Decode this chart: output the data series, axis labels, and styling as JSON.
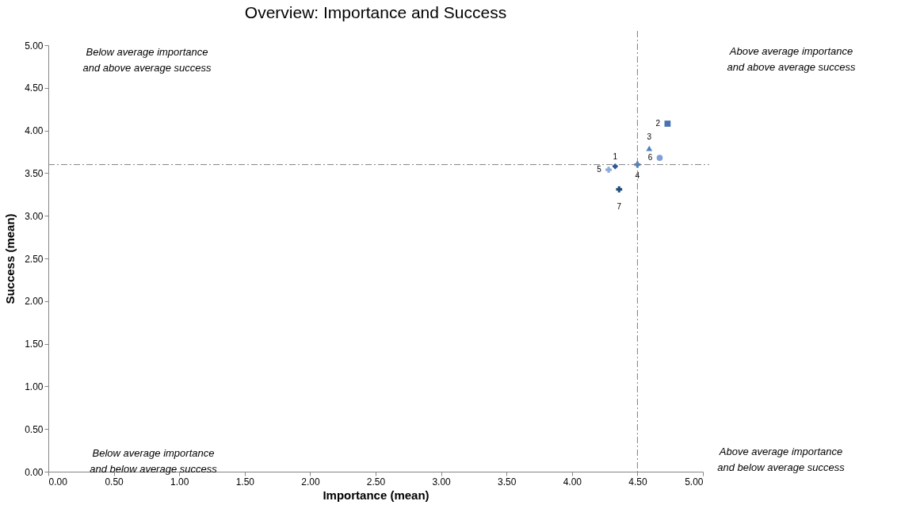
{
  "chart_data": {
    "type": "scatter",
    "title": "Overview: Importance and Success",
    "xlabel": "Importance (mean)",
    "ylabel": "Success (mean)",
    "xlim": [
      0,
      5
    ],
    "ylim": [
      0,
      5
    ],
    "xticks": [
      {
        "value": 0,
        "label": "0.00"
      },
      {
        "value": 0.5,
        "label": "0.50"
      },
      {
        "value": 1,
        "label": "1.00"
      },
      {
        "value": 1.5,
        "label": "1.50"
      },
      {
        "value": 2,
        "label": "2.00"
      },
      {
        "value": 2.5,
        "label": "2.50"
      },
      {
        "value": 3,
        "label": "3.00"
      },
      {
        "value": 3.5,
        "label": "3.50"
      },
      {
        "value": 4,
        "label": "4.00"
      },
      {
        "value": 4.5,
        "label": "4.50"
      },
      {
        "value": 5,
        "label": "5.00"
      }
    ],
    "yticks": [
      {
        "value": 0,
        "label": "0.00"
      },
      {
        "value": 0.5,
        "label": "0.50"
      },
      {
        "value": 1,
        "label": "1.00"
      },
      {
        "value": 1.5,
        "label": "1.50"
      },
      {
        "value": 2,
        "label": "2.00"
      },
      {
        "value": 2.5,
        "label": "2.50"
      },
      {
        "value": 3,
        "label": "3.00"
      },
      {
        "value": 3.5,
        "label": "3.50"
      },
      {
        "value": 4,
        "label": "4.00"
      },
      {
        "value": 4.5,
        "label": "4.50"
      },
      {
        "value": 5,
        "label": "5.00"
      }
    ],
    "grid": false,
    "series": [
      {
        "name": "1",
        "color": "#2f5597",
        "marker": "diamond",
        "x": [
          4.33
        ],
        "values": [
          3.58
        ]
      },
      {
        "name": "2",
        "color": "#4a72b0",
        "marker": "square",
        "x": [
          4.73
        ],
        "values": [
          4.08
        ]
      },
      {
        "name": "3",
        "color": "#4f81bd",
        "marker": "triangle",
        "x": [
          4.59
        ],
        "values": [
          3.79
        ]
      },
      {
        "name": "4",
        "color": "#4f81bd",
        "marker": "cross",
        "x": [
          4.5
        ],
        "values": [
          3.6
        ]
      },
      {
        "name": "5",
        "color": "#8eaadb",
        "marker": "cross",
        "x": [
          4.28
        ],
        "values": [
          3.54
        ]
      },
      {
        "name": "6",
        "color": "#7f9fd6",
        "marker": "circle",
        "x": [
          4.67
        ],
        "values": [
          3.68
        ]
      },
      {
        "name": "7",
        "color": "#1f4e79",
        "marker": "cross",
        "x": [
          4.36
        ],
        "values": [
          3.31
        ]
      }
    ],
    "ref_lines": [
      {
        "axis": "x",
        "value": 4.5,
        "color": "#7f7f7f",
        "line_style": "dashdot"
      },
      {
        "axis": "y",
        "value": 3.6,
        "color": "#7f7f7f",
        "line_style": "dashdot"
      }
    ],
    "annotations": [
      "Below average importance\nand above average success",
      "Above average importance\nand above average success",
      "Below average importance\nand below average success",
      "Above average importance\nand  below average success"
    ]
  }
}
